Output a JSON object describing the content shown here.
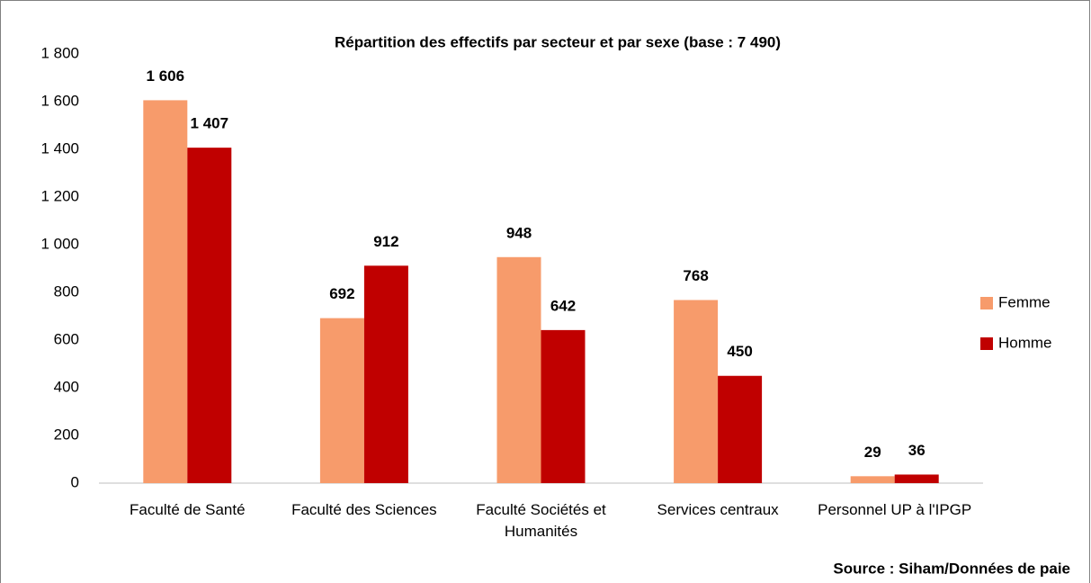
{
  "chart_data": {
    "type": "bar",
    "title": "Répartition des effectifs par secteur et par sexe (base : 7 490)",
    "source": "Source : Siham/Données de paie",
    "categories": [
      "Faculté de Santé",
      "Faculté des Sciences",
      "Faculté Sociétés et Humanités",
      "Services centraux",
      "Personnel UP à l'IPGP"
    ],
    "series": [
      {
        "name": "Femme",
        "color": "#F79B6B",
        "values": [
          1606,
          692,
          948,
          768,
          29
        ],
        "value_labels": [
          "1 606",
          "692",
          "948",
          "768",
          "29"
        ]
      },
      {
        "name": "Homme",
        "color": "#C00000",
        "values": [
          1407,
          912,
          642,
          450,
          36
        ],
        "value_labels": [
          "1 407",
          "912",
          "642",
          "450",
          "36"
        ]
      }
    ],
    "ylim": [
      0,
      1800
    ],
    "yticks": [
      0,
      200,
      400,
      600,
      800,
      {
        "value": 1000,
        "label": "1 000"
      },
      {
        "value": 1200,
        "label": "1 200"
      },
      {
        "value": 1400,
        "label": "1 400"
      },
      {
        "value": 1600,
        "label": "1 600"
      },
      {
        "value": 1800,
        "label": "1 800"
      }
    ],
    "grid": false,
    "legend": "right"
  }
}
